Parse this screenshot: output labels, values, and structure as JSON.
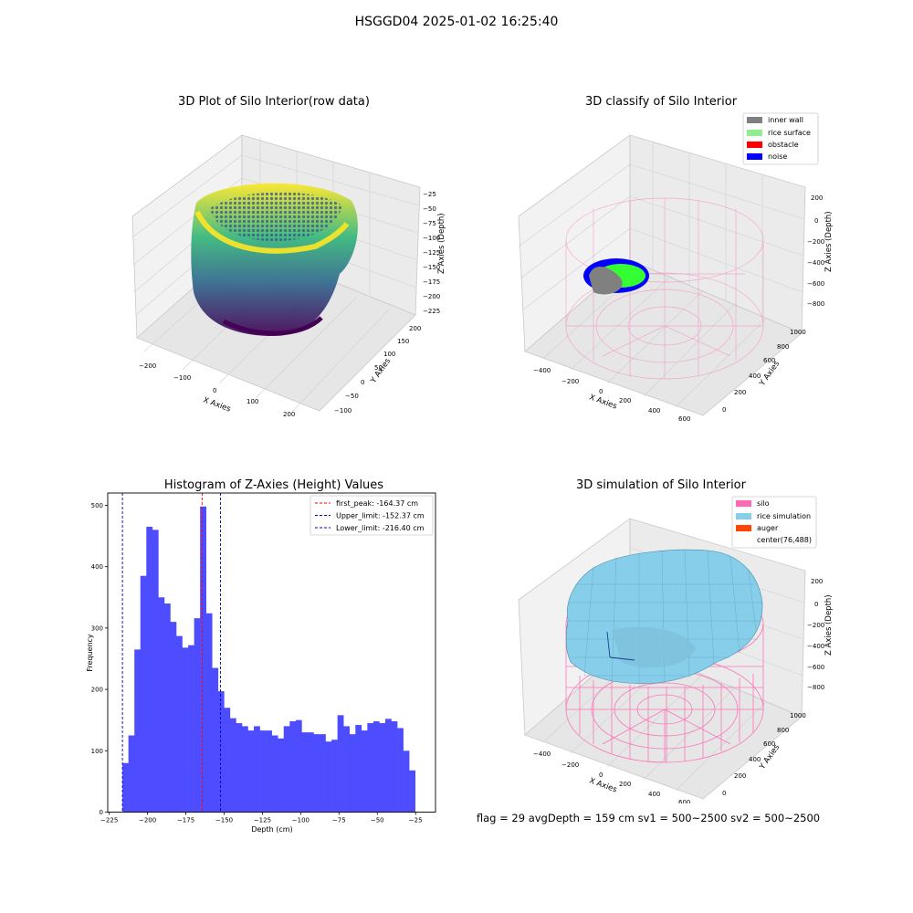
{
  "header": {
    "title": "HSGGD04 2025-01-02 16:25:40"
  },
  "footer": {
    "status": "flag = 29  avgDepth = 159 cm  sv1 = 500~2500  sv2 = 500~2500"
  },
  "colors": {
    "histogram_bar": "#4d4dff",
    "first_peak": "#ff0000",
    "limit_lines": "#0000cc",
    "inner_wall": "#808080",
    "rice_surface": "#90ee90",
    "obstacle": "#ff0000",
    "noise": "#0000ff",
    "silo": "#ff69b4",
    "rice_simulation": "#87ceeb",
    "auger": "#ff4500"
  },
  "chart_data": [
    {
      "type": "scatter",
      "title": "3D Plot of Silo Interior(row data)",
      "xlabel": "X Axies",
      "ylabel": "Y Axies",
      "zlabel": "Z Axies (Depth)",
      "xticks": [
        "−200",
        "−100",
        "0",
        "100",
        "200"
      ],
      "yticks": [
        "−100",
        "−50",
        "0",
        "50",
        "100",
        "150",
        "200"
      ],
      "zticks": [
        "−25",
        "−50",
        "−75",
        "−100",
        "−125",
        "−150",
        "−175",
        "−200",
        "−225"
      ],
      "colormap": "viridis"
    },
    {
      "type": "scatter",
      "title": "3D classify of Silo Interior",
      "xlabel": "X Axies",
      "ylabel": "Y Axies",
      "zlabel": "Z Axies (Depth)",
      "xticks": [
        "−400",
        "−200",
        "0",
        "200",
        "400",
        "600"
      ],
      "yticks": [
        "0",
        "200",
        "400",
        "600",
        "800",
        "1000"
      ],
      "zticks": [
        "200",
        "0",
        "−200",
        "−400",
        "−600",
        "−800"
      ],
      "legend": [
        "inner wall",
        "rice surface",
        "obstacle",
        "noise"
      ],
      "legend_position": "top-right"
    },
    {
      "type": "bar",
      "title": "Histogram of Z-Axies (Height) Values",
      "xlabel": "Depth (cm)",
      "ylabel": "Frequency",
      "xlim": [
        -226,
        -12
      ],
      "ylim": [
        0,
        520
      ],
      "xticks": [
        -225,
        -200,
        -175,
        -150,
        -125,
        -100,
        -75,
        -50,
        -25
      ],
      "xtick_labels": [
        "−225",
        "−200",
        "−175",
        "−150",
        "−125",
        "−100",
        "−75",
        "−50",
        "−25"
      ],
      "yticks": [
        0,
        100,
        200,
        300,
        400,
        500
      ],
      "bin_start": -216.4,
      "bin_width": 3.9,
      "values": [
        80,
        125,
        265,
        385,
        465,
        460,
        350,
        340,
        310,
        287,
        268,
        272,
        316,
        498,
        324,
        235,
        197,
        170,
        153,
        145,
        140,
        133,
        140,
        133,
        133,
        125,
        120,
        140,
        148,
        150,
        130,
        130,
        127,
        127,
        115,
        118,
        158,
        140,
        127,
        142,
        133,
        145,
        148,
        145,
        152,
        148,
        137,
        100,
        68
      ],
      "vlines": [
        {
          "label": "first_peak: -164.37 cm",
          "x": -164.37,
          "color": "#ff0000"
        },
        {
          "label": "Upper_limit: -152.37 cm",
          "x": -152.37,
          "color": "#0000cc"
        },
        {
          "label": "Lower_limit: -216.40 cm",
          "x": -216.4,
          "color": "#0000cc"
        }
      ],
      "legend_position": "top-right"
    },
    {
      "type": "surface",
      "title": "3D simulation of Silo Interior",
      "xlabel": "X Axies",
      "ylabel": "Y Axies",
      "zlabel": "Z Axies (Depth)",
      "xticks": [
        "−400",
        "−200",
        "0",
        "200",
        "400",
        "600"
      ],
      "yticks": [
        "0",
        "200",
        "400",
        "600",
        "800",
        "1000"
      ],
      "zticks": [
        "200",
        "0",
        "−200",
        "−400",
        "−600",
        "−800"
      ],
      "legend": [
        "silo",
        "rice simulation",
        "auger",
        "center(76,488)"
      ],
      "legend_position": "top-right"
    }
  ]
}
